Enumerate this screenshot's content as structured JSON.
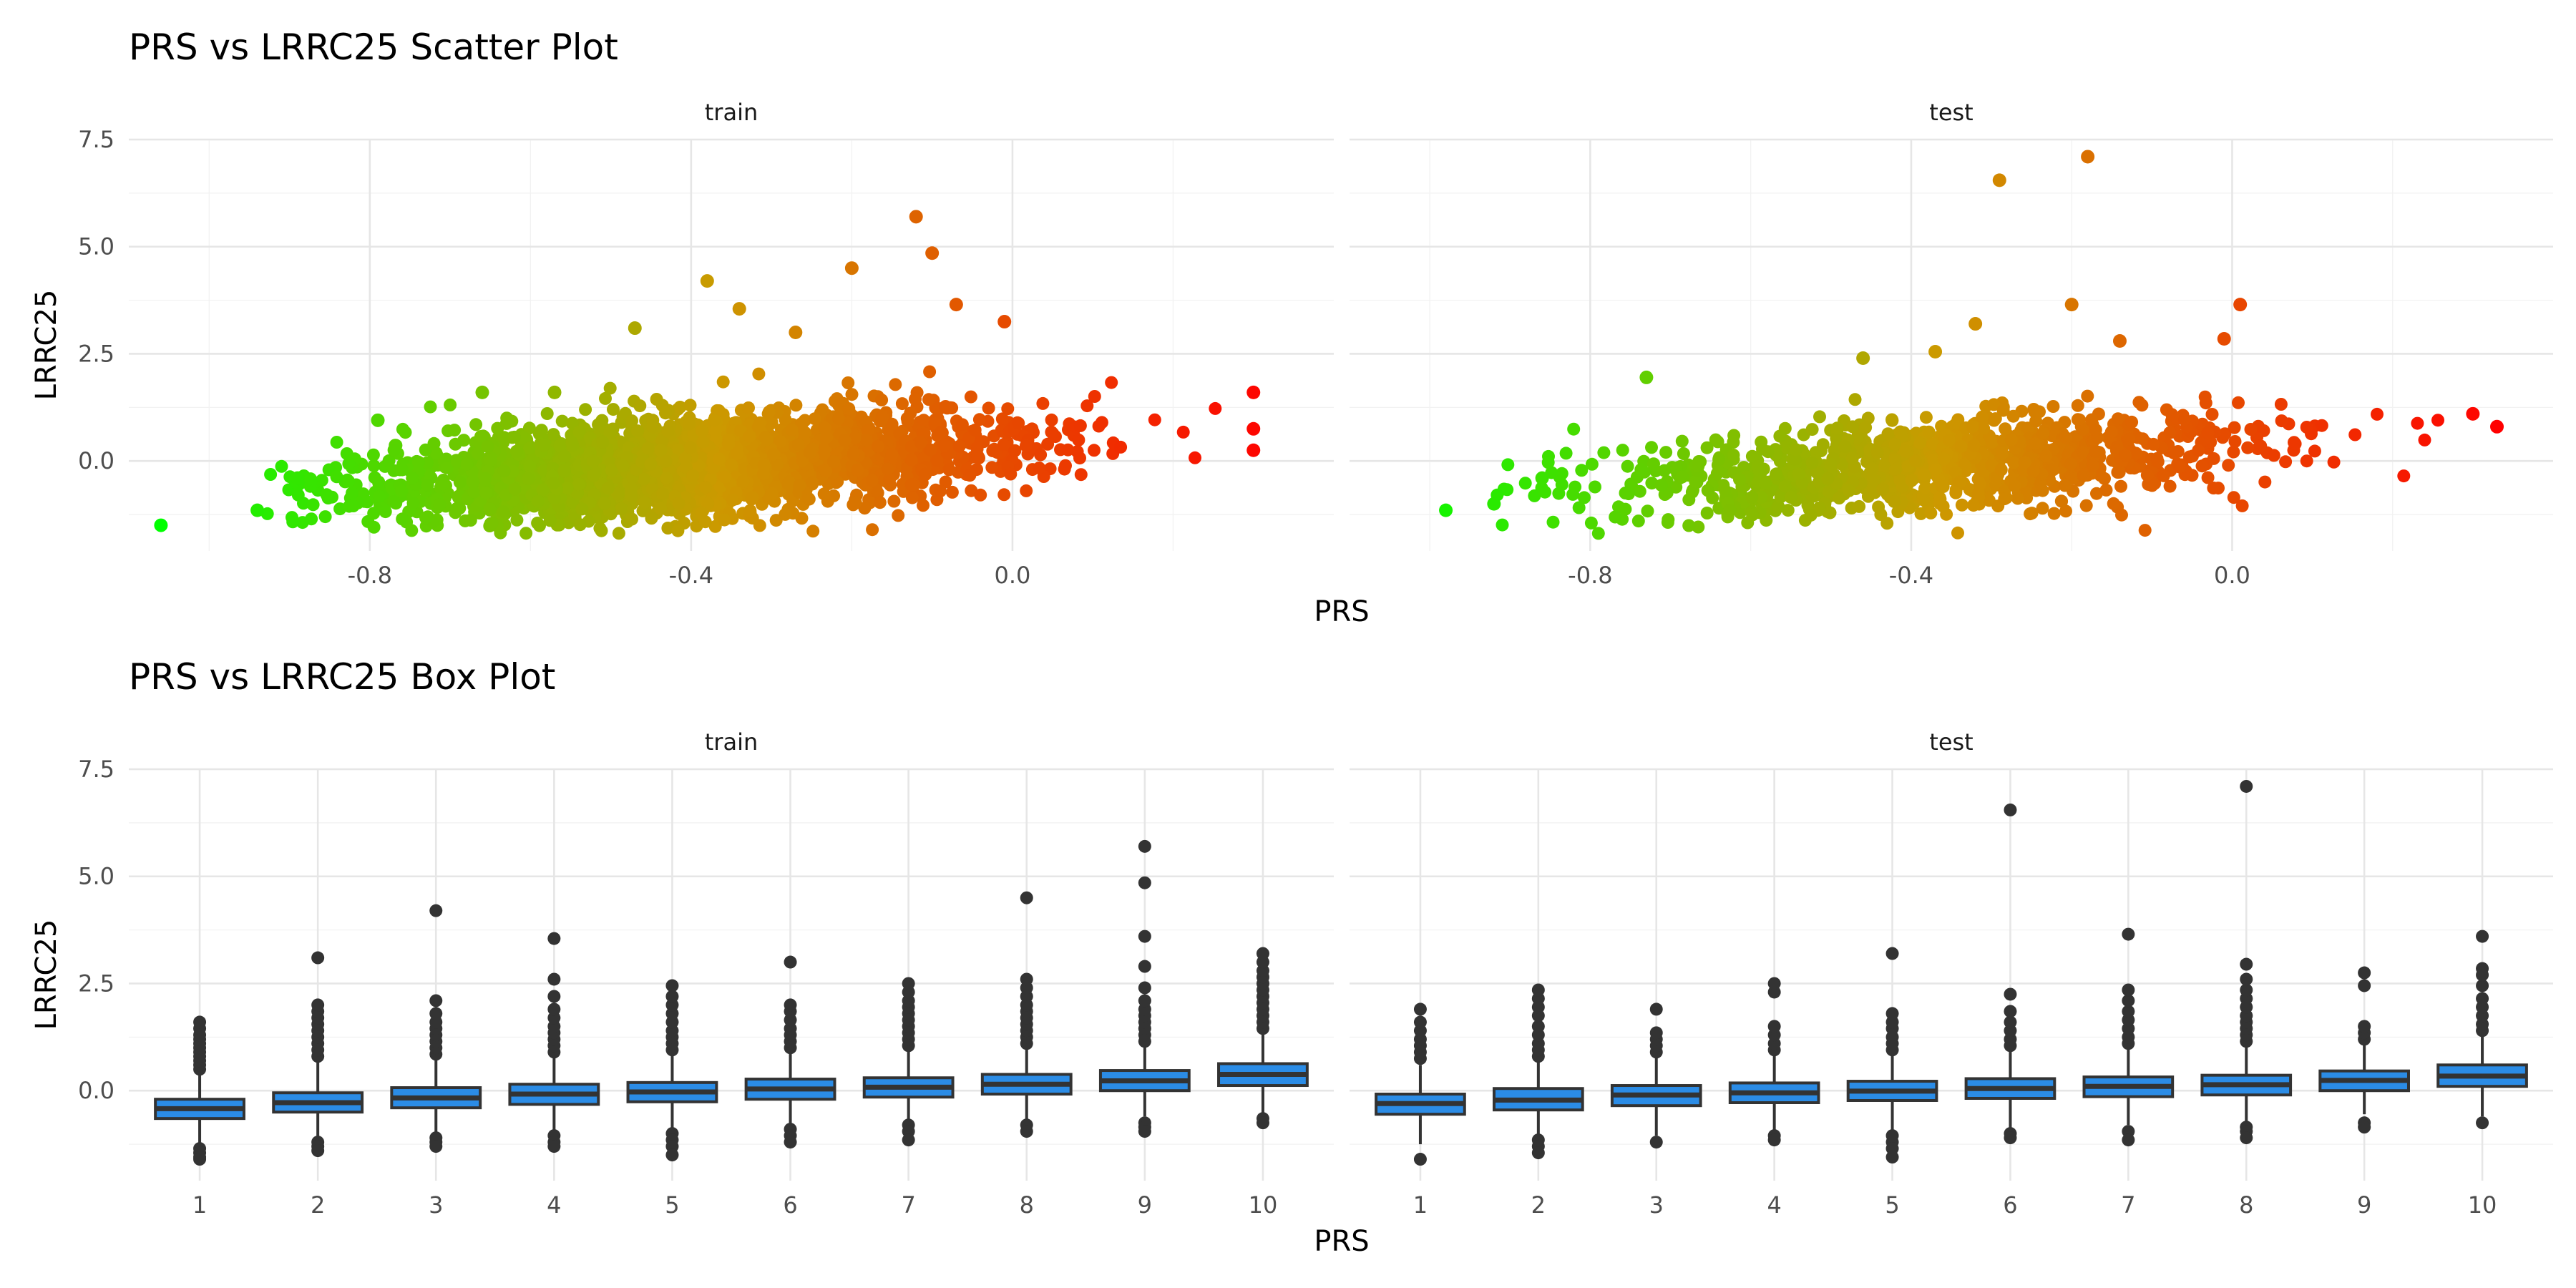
{
  "colors": {
    "box_fill": "#2b8ce6",
    "box_line": "#333333",
    "grid": "#e6e6e6",
    "gradient_low": "#00ff00",
    "gradient_mid": "#cc9900",
    "gradient_high": "#ff0000"
  },
  "chart_data": [
    {
      "type": "scatter",
      "title": "PRS vs LRRC25 Scatter Plot",
      "xlabel": "PRS",
      "ylabel": "LRRC25",
      "color_by": "PRS",
      "grid": true,
      "panels": [
        {
          "name": "train",
          "xlim": [
            -1.1,
            0.4
          ],
          "ylim": [
            -2.1,
            7.5
          ],
          "xticks": [
            -0.8,
            -0.4,
            0.0
          ],
          "xtick_labels": [
            "-0.8",
            "-0.4",
            "0.0"
          ],
          "yticks": [
            0.0,
            2.5,
            5.0,
            7.5
          ],
          "ytick_labels": [
            "0.0",
            "2.5",
            "5.0",
            "7.5"
          ],
          "cloud": {
            "n": 2600,
            "x_mean": -0.4,
            "x_sd": 0.2,
            "slope": 1.3,
            "intercept": 0.4,
            "y_sd": 0.45
          },
          "notable_points": [
            {
              "x": -1.06,
              "y": -1.5
            },
            {
              "x": -0.94,
              "y": -1.15
            },
            {
              "x": -0.89,
              "y": -0.4
            },
            {
              "x": -0.79,
              "y": 0.95
            },
            {
              "x": -0.66,
              "y": 1.6
            },
            {
              "x": -0.57,
              "y": 1.6
            },
            {
              "x": -0.47,
              "y": 3.1
            },
            {
              "x": -0.38,
              "y": 4.2
            },
            {
              "x": -0.34,
              "y": 3.55
            },
            {
              "x": -0.27,
              "y": 3.0
            },
            {
              "x": -0.2,
              "y": 4.5
            },
            {
              "x": -0.12,
              "y": 5.7
            },
            {
              "x": -0.1,
              "y": 4.85
            },
            {
              "x": -0.07,
              "y": 3.65
            },
            {
              "x": -0.01,
              "y": 3.25
            },
            {
              "x": 0.3,
              "y": 1.6
            },
            {
              "x": 0.3,
              "y": 0.75
            },
            {
              "x": 0.3,
              "y": 0.25
            }
          ]
        },
        {
          "name": "test",
          "xlim": [
            -1.1,
            0.4
          ],
          "ylim": [
            -2.1,
            7.5
          ],
          "xticks": [
            -0.8,
            -0.4,
            0.0
          ],
          "xtick_labels": [
            "-0.8",
            "-0.4",
            "0.0"
          ],
          "yticks": [
            0.0,
            2.5,
            5.0,
            7.5
          ],
          "ytick_labels": [
            "0.0",
            "2.5",
            "5.0",
            "7.5"
          ],
          "cloud": {
            "n": 1100,
            "x_mean": -0.38,
            "x_sd": 0.2,
            "slope": 1.3,
            "intercept": 0.4,
            "y_sd": 0.45
          },
          "notable_points": [
            {
              "x": -0.98,
              "y": -1.15
            },
            {
              "x": -0.92,
              "y": -1.0
            },
            {
              "x": -0.86,
              "y": -0.4
            },
            {
              "x": -0.73,
              "y": 1.95
            },
            {
              "x": -0.46,
              "y": 2.4
            },
            {
              "x": -0.37,
              "y": 2.55
            },
            {
              "x": -0.32,
              "y": 3.2
            },
            {
              "x": -0.29,
              "y": 6.55
            },
            {
              "x": -0.18,
              "y": 7.1
            },
            {
              "x": -0.2,
              "y": 3.65
            },
            {
              "x": -0.14,
              "y": 2.8
            },
            {
              "x": 0.01,
              "y": 3.65
            },
            {
              "x": -0.01,
              "y": 2.85
            },
            {
              "x": 0.3,
              "y": 1.1
            },
            {
              "x": 0.33,
              "y": 0.8
            }
          ]
        }
      ]
    },
    {
      "type": "box",
      "title": "PRS vs LRRC25 Box Plot",
      "xlabel": "PRS",
      "ylabel": "LRRC25",
      "categories": [
        "1",
        "2",
        "3",
        "4",
        "5",
        "6",
        "7",
        "8",
        "9",
        "10"
      ],
      "ylim": [
        -2.1,
        7.5
      ],
      "yticks": [
        0.0,
        2.5,
        5.0,
        7.5
      ],
      "ytick_labels": [
        "0.0",
        "2.5",
        "5.0",
        "7.5"
      ],
      "grid": true,
      "panels": [
        {
          "name": "train",
          "boxes": [
            {
              "q1": -0.65,
              "median": -0.42,
              "q3": -0.2,
              "whisker_low": -1.3,
              "whisker_high": 0.45,
              "outliers": [
                -1.35,
                -1.45,
                -1.55,
                -1.6,
                0.5,
                0.6,
                0.7,
                0.8,
                0.9,
                1.0,
                1.1,
                1.2,
                1.3,
                1.45,
                1.6
              ]
            },
            {
              "q1": -0.5,
              "median": -0.28,
              "q3": -0.05,
              "whisker_low": -1.15,
              "whisker_high": 0.7,
              "outliers": [
                -1.2,
                -1.3,
                -1.4,
                0.8,
                0.95,
                1.1,
                1.25,
                1.4,
                1.55,
                1.7,
                1.85,
                2.0,
                3.1
              ]
            },
            {
              "q1": -0.4,
              "median": -0.17,
              "q3": 0.07,
              "whisker_low": -1.1,
              "whisker_high": 0.8,
              "outliers": [
                -1.1,
                -1.2,
                -1.3,
                0.85,
                1.0,
                1.15,
                1.3,
                1.45,
                1.6,
                1.8,
                2.1,
                4.2
              ]
            },
            {
              "q1": -0.32,
              "median": -0.08,
              "q3": 0.15,
              "whisker_low": -1.05,
              "whisker_high": 0.85,
              "outliers": [
                -1.05,
                -1.2,
                -1.3,
                0.9,
                1.05,
                1.2,
                1.35,
                1.5,
                1.7,
                1.9,
                2.2,
                2.6,
                3.55
              ]
            },
            {
              "q1": -0.26,
              "median": -0.03,
              "q3": 0.19,
              "whisker_low": -0.95,
              "whisker_high": 0.9,
              "outliers": [
                -1.0,
                -1.15,
                -1.3,
                -1.5,
                0.95,
                1.1,
                1.25,
                1.4,
                1.6,
                1.8,
                2.0,
                2.2,
                2.45
              ]
            },
            {
              "q1": -0.2,
              "median": 0.04,
              "q3": 0.27,
              "whisker_low": -0.85,
              "whisker_high": 0.98,
              "outliers": [
                -0.9,
                -1.05,
                -1.2,
                1.0,
                1.15,
                1.3,
                1.45,
                1.65,
                1.85,
                2.0,
                3.0
              ]
            },
            {
              "q1": -0.15,
              "median": 0.08,
              "q3": 0.3,
              "whisker_low": -0.75,
              "whisker_high": 1.0,
              "outliers": [
                -0.8,
                -0.95,
                -1.15,
                1.05,
                1.2,
                1.35,
                1.5,
                1.65,
                1.8,
                1.95,
                2.1,
                2.3,
                2.5
              ]
            },
            {
              "q1": -0.08,
              "median": 0.15,
              "q3": 0.38,
              "whisker_low": -0.7,
              "whisker_high": 1.05,
              "outliers": [
                -0.8,
                -0.95,
                1.1,
                1.25,
                1.4,
                1.55,
                1.7,
                1.85,
                2.0,
                2.2,
                2.4,
                2.6,
                4.5
              ]
            },
            {
              "q1": 0.0,
              "median": 0.23,
              "q3": 0.47,
              "whisker_low": -0.6,
              "whisker_high": 1.1,
              "outliers": [
                -0.75,
                -0.85,
                -0.95,
                1.15,
                1.3,
                1.45,
                1.6,
                1.75,
                1.9,
                2.1,
                2.4,
                2.9,
                3.6,
                4.85,
                5.7
              ]
            },
            {
              "q1": 0.12,
              "median": 0.38,
              "q3": 0.63,
              "whisker_low": -0.6,
              "whisker_high": 1.35,
              "outliers": [
                -0.65,
                -0.75,
                1.45,
                1.6,
                1.75,
                1.9,
                2.05,
                2.2,
                2.35,
                2.5,
                2.65,
                2.8,
                3.0,
                3.2
              ]
            }
          ]
        },
        {
          "name": "test",
          "boxes": [
            {
              "q1": -0.55,
              "median": -0.3,
              "q3": -0.08,
              "whisker_low": -1.25,
              "whisker_high": 0.6,
              "outliers": [
                -1.6,
                0.75,
                0.9,
                1.05,
                1.2,
                1.4,
                1.6,
                1.9
              ]
            },
            {
              "q1": -0.45,
              "median": -0.22,
              "q3": 0.05,
              "whisker_low": -1.1,
              "whisker_high": 0.7,
              "outliers": [
                -1.15,
                -1.3,
                -1.45,
                0.8,
                0.95,
                1.1,
                1.3,
                1.5,
                1.75,
                1.95,
                2.15,
                2.35
              ]
            },
            {
              "q1": -0.35,
              "median": -0.1,
              "q3": 0.12,
              "whisker_low": -1.05,
              "whisker_high": 0.8,
              "outliers": [
                -1.2,
                0.9,
                1.05,
                1.2,
                1.35,
                1.9
              ]
            },
            {
              "q1": -0.28,
              "median": -0.05,
              "q3": 0.18,
              "whisker_low": -0.95,
              "whisker_high": 0.85,
              "outliers": [
                -1.05,
                -1.15,
                0.95,
                1.1,
                1.3,
                1.5,
                2.3,
                2.5
              ]
            },
            {
              "q1": -0.23,
              "median": -0.01,
              "q3": 0.22,
              "whisker_low": -0.95,
              "whisker_high": 0.9,
              "outliers": [
                -1.05,
                -1.2,
                -1.35,
                -1.55,
                0.95,
                1.1,
                1.25,
                1.45,
                1.6,
                1.8,
                3.2
              ]
            },
            {
              "q1": -0.18,
              "median": 0.05,
              "q3": 0.28,
              "whisker_low": -0.9,
              "whisker_high": 0.95,
              "outliers": [
                -1.0,
                -1.1,
                1.05,
                1.2,
                1.4,
                1.6,
                1.85,
                2.25,
                6.55
              ]
            },
            {
              "q1": -0.14,
              "median": 0.1,
              "q3": 0.32,
              "whisker_low": -0.8,
              "whisker_high": 1.0,
              "outliers": [
                -0.95,
                -1.15,
                1.1,
                1.25,
                1.45,
                1.65,
                1.85,
                2.1,
                2.35,
                3.65
              ]
            },
            {
              "q1": -0.1,
              "median": 0.14,
              "q3": 0.36,
              "whisker_low": -0.75,
              "whisker_high": 1.05,
              "outliers": [
                -0.85,
                -0.95,
                -1.1,
                1.15,
                1.3,
                1.45,
                1.6,
                1.75,
                1.95,
                2.15,
                2.35,
                2.6,
                2.95,
                7.1
              ]
            },
            {
              "q1": 0.0,
              "median": 0.24,
              "q3": 0.46,
              "whisker_low": -0.55,
              "whisker_high": 1.1,
              "outliers": [
                -0.75,
                -0.85,
                1.2,
                1.35,
                1.5,
                2.45,
                2.75
              ]
            },
            {
              "q1": 0.1,
              "median": 0.34,
              "q3": 0.6,
              "whisker_low": -0.6,
              "whisker_high": 1.3,
              "outliers": [
                -0.75,
                1.4,
                1.55,
                1.75,
                1.95,
                2.15,
                2.45,
                2.7,
                2.85,
                3.6
              ]
            }
          ]
        }
      ]
    }
  ]
}
